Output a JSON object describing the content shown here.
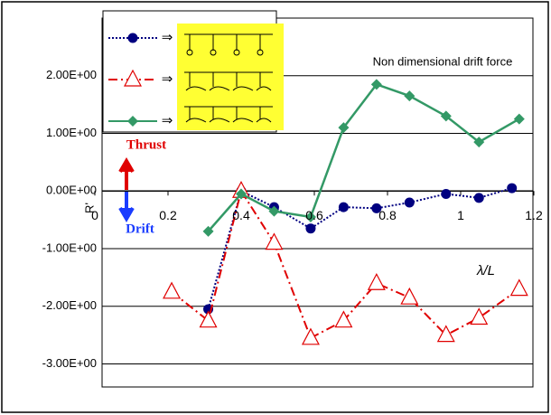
{
  "chart_data": {
    "type": "line",
    "annotation": "Non dimensional drift force",
    "y_label": "R'",
    "thrust_label": "Thrust",
    "drift_label": "Drift",
    "x_label": "λ/L",
    "legend_symbols": [
      "⇒",
      "⇒",
      "⇒"
    ],
    "xlim": [
      0,
      1.2
    ],
    "xticks": [
      0,
      0.2,
      0.4,
      0.6,
      0.8,
      1,
      1.2
    ],
    "ylim": [
      -3.4,
      3
    ],
    "yticks": [
      {
        "value": 2,
        "label": "2.00E+00"
      },
      {
        "value": 1,
        "label": "1.00E+00"
      },
      {
        "value": 0,
        "label": "0.00E+00"
      },
      {
        "value": -1,
        "label": "-1.00E+00"
      },
      {
        "value": -2,
        "label": "-2.00E+00"
      },
      {
        "value": -3,
        "label": "-3.00E+00"
      }
    ],
    "grid": true,
    "series": [
      {
        "color": "#000080",
        "marker": "circle",
        "dash": "2,2",
        "x": [
          0.31,
          0.4,
          0.49,
          0.59,
          0.68,
          0.77,
          0.86,
          0.96,
          1.05,
          1.14
        ],
        "values": [
          -2.05,
          0.0,
          -0.28,
          -0.65,
          -0.28,
          -0.3,
          -0.2,
          -0.05,
          -0.12,
          0.05
        ]
      },
      {
        "color": "#e00000",
        "marker": "triangle",
        "dash": "10,4,2,4",
        "x": [
          0.21,
          0.31,
          0.4,
          0.49,
          0.59,
          0.68,
          0.77,
          0.86,
          0.96,
          1.05,
          1.16
        ],
        "values": [
          -1.75,
          -2.25,
          0.0,
          -0.9,
          -2.55,
          -2.25,
          -1.6,
          -1.85,
          -2.5,
          -2.2,
          -1.7
        ]
      },
      {
        "color": "#339966",
        "marker": "diamond",
        "dash": "",
        "x": [
          0.31,
          0.4,
          0.49,
          0.59,
          0.68,
          0.77,
          0.86,
          0.96,
          1.05,
          1.16
        ],
        "values": [
          -0.7,
          -0.05,
          -0.35,
          -0.45,
          1.1,
          1.85,
          1.65,
          1.3,
          0.85,
          1.25
        ]
      }
    ]
  }
}
